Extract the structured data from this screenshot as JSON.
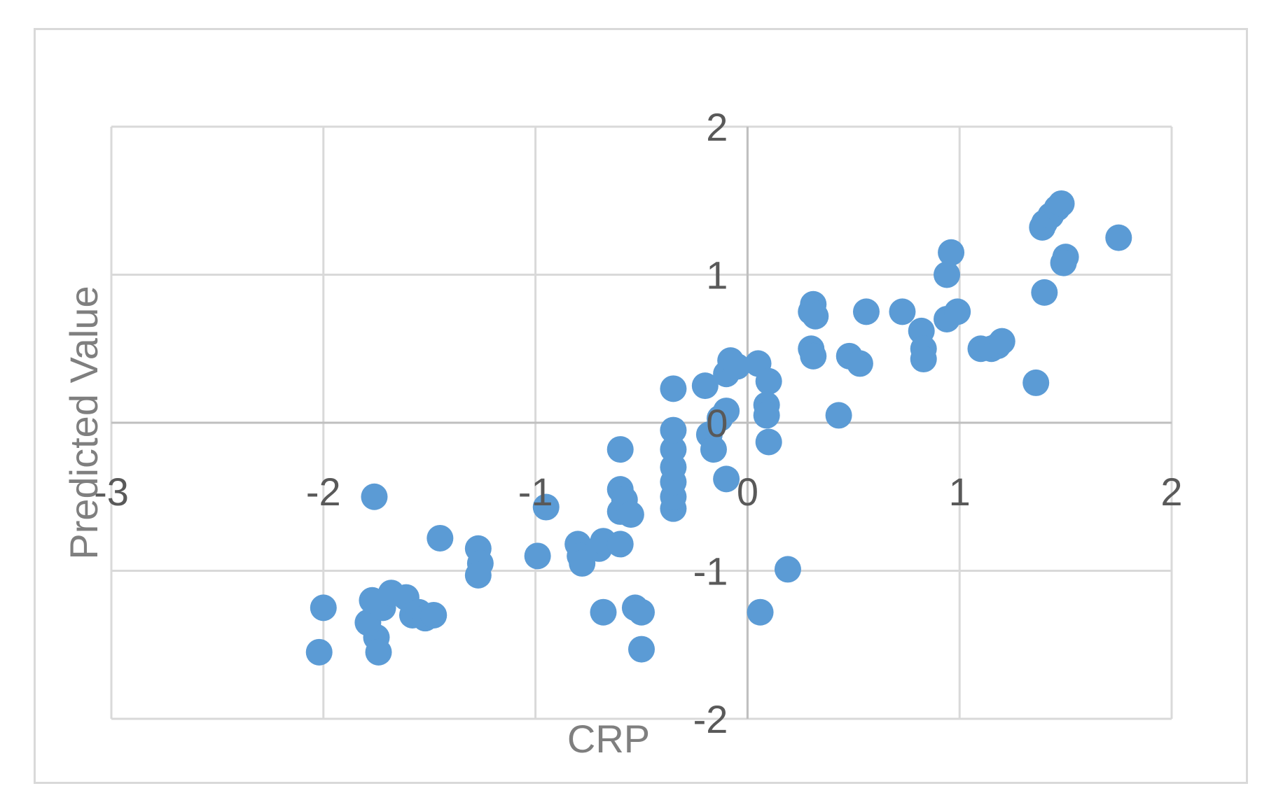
{
  "chart_data": {
    "type": "scatter",
    "xlabel": "CRP",
    "ylabel": "Predicted Value",
    "xlim": [
      -3,
      2
    ],
    "ylim": [
      -2,
      2
    ],
    "x_ticks": [
      -3,
      -2,
      -1,
      0,
      1,
      2
    ],
    "y_ticks": [
      -2,
      -1,
      0,
      1,
      2
    ],
    "x_tick_labels": [
      "-3",
      "-2",
      "-1",
      "0",
      "1",
      "2"
    ],
    "y_tick_labels": [
      "-2",
      "-1",
      "0",
      "1",
      "2"
    ],
    "grid": true,
    "marker_color": "#5b9bd5",
    "points": [
      [
        -2.0,
        -1.25
      ],
      [
        -2.02,
        -1.55
      ],
      [
        -1.75,
        -1.45
      ],
      [
        -1.74,
        -1.55
      ],
      [
        -1.79,
        -1.35
      ],
      [
        -1.77,
        -1.2
      ],
      [
        -1.72,
        -1.25
      ],
      [
        -1.68,
        -1.15
      ],
      [
        -1.61,
        -1.18
      ],
      [
        -1.58,
        -1.3
      ],
      [
        -1.55,
        -1.28
      ],
      [
        -1.52,
        -1.32
      ],
      [
        -1.48,
        -1.3
      ],
      [
        -1.76,
        -0.5
      ],
      [
        -1.45,
        -0.78
      ],
      [
        -1.27,
        -0.85
      ],
      [
        -1.26,
        -0.95
      ],
      [
        -1.27,
        -1.03
      ],
      [
        -0.99,
        -0.9
      ],
      [
        -0.95,
        -0.57
      ],
      [
        -0.8,
        -0.82
      ],
      [
        -0.79,
        -0.9
      ],
      [
        -0.78,
        -0.95
      ],
      [
        -0.7,
        -0.85
      ],
      [
        -0.68,
        -0.8
      ],
      [
        -0.6,
        -0.82
      ],
      [
        -0.6,
        -0.6
      ],
      [
        -0.6,
        -0.45
      ],
      [
        -0.58,
        -0.52
      ],
      [
        -0.55,
        -0.62
      ],
      [
        -0.6,
        -0.18
      ],
      [
        -0.68,
        -1.28
      ],
      [
        -0.53,
        -1.25
      ],
      [
        -0.5,
        -1.28
      ],
      [
        -0.5,
        -1.53
      ],
      [
        -0.35,
        -0.58
      ],
      [
        -0.35,
        -0.5
      ],
      [
        -0.35,
        -0.4
      ],
      [
        -0.35,
        -0.3
      ],
      [
        -0.35,
        -0.18
      ],
      [
        -0.35,
        -0.05
      ],
      [
        -0.35,
        0.23
      ],
      [
        -0.2,
        0.25
      ],
      [
        -0.18,
        -0.08
      ],
      [
        -0.16,
        -0.18
      ],
      [
        -0.13,
        0.03
      ],
      [
        -0.1,
        0.08
      ],
      [
        -0.1,
        0.33
      ],
      [
        -0.1,
        -0.38
      ],
      [
        -0.08,
        0.42
      ],
      [
        -0.05,
        0.38
      ],
      [
        0.05,
        0.4
      ],
      [
        0.1,
        0.28
      ],
      [
        0.09,
        0.12
      ],
      [
        0.09,
        0.05
      ],
      [
        0.1,
        -0.13
      ],
      [
        0.19,
        -0.99
      ],
      [
        0.06,
        -1.28
      ],
      [
        0.31,
        0.8
      ],
      [
        0.3,
        0.75
      ],
      [
        0.32,
        0.72
      ],
      [
        0.3,
        0.5
      ],
      [
        0.31,
        0.45
      ],
      [
        0.43,
        0.05
      ],
      [
        0.48,
        0.45
      ],
      [
        0.53,
        0.4
      ],
      [
        0.56,
        0.75
      ],
      [
        0.73,
        0.75
      ],
      [
        0.82,
        0.62
      ],
      [
        0.83,
        0.5
      ],
      [
        0.83,
        0.43
      ],
      [
        0.94,
        1.0
      ],
      [
        0.96,
        1.15
      ],
      [
        0.94,
        0.7
      ],
      [
        0.99,
        0.75
      ],
      [
        1.1,
        0.5
      ],
      [
        1.15,
        0.5
      ],
      [
        1.18,
        0.52
      ],
      [
        1.2,
        0.55
      ],
      [
        1.36,
        0.27
      ],
      [
        1.39,
        1.32
      ],
      [
        1.4,
        1.35
      ],
      [
        1.43,
        1.4
      ],
      [
        1.46,
        1.45
      ],
      [
        1.48,
        1.48
      ],
      [
        1.5,
        1.12
      ],
      [
        1.49,
        1.08
      ],
      [
        1.4,
        0.88
      ],
      [
        1.75,
        1.25
      ]
    ]
  }
}
